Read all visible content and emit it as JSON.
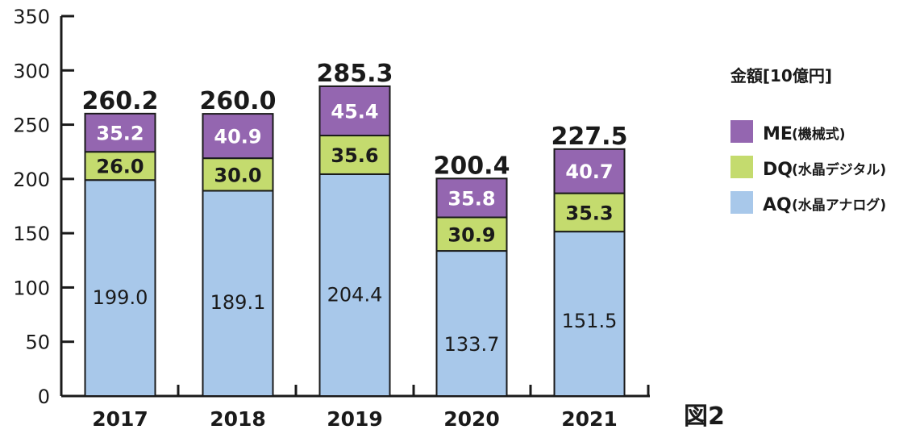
{
  "chart_data": {
    "type": "bar",
    "stacked": true,
    "categories": [
      "2017",
      "2018",
      "2019",
      "2020",
      "2021"
    ],
    "series": [
      {
        "name": "AQ",
        "name_suffix": "(水晶アナログ)",
        "values": [
          199.0,
          189.1,
          204.4,
          133.7,
          151.5
        ],
        "color": "#a8c8ea",
        "labels": [
          "199.0",
          "189.1",
          "204.4",
          "133.7",
          "151.5"
        ]
      },
      {
        "name": "DQ",
        "name_suffix": "(水晶デジタル)",
        "values": [
          26.0,
          30.0,
          35.6,
          30.9,
          35.3
        ],
        "color": "#c4db6e",
        "labels": [
          "26.0",
          "30.0",
          "35.6",
          "30.9",
          "35.3"
        ]
      },
      {
        "name": "ME",
        "name_suffix": "(機械式)",
        "values": [
          35.2,
          40.9,
          45.4,
          35.8,
          40.7
        ],
        "color": "#9466b0",
        "labels": [
          "35.2",
          "40.9",
          "45.4",
          "35.8",
          "40.7"
        ]
      }
    ],
    "totals": [
      "260.2",
      "260.0",
      "285.3",
      "200.4",
      "227.5"
    ],
    "ylim": [
      0,
      350
    ],
    "yticks": [
      "0",
      "50",
      "100",
      "150",
      "200",
      "250",
      "300",
      "350"
    ],
    "unit_label": "金額[10億円]",
    "figure_label": "図2",
    "grid": false,
    "legend_position": "right"
  }
}
